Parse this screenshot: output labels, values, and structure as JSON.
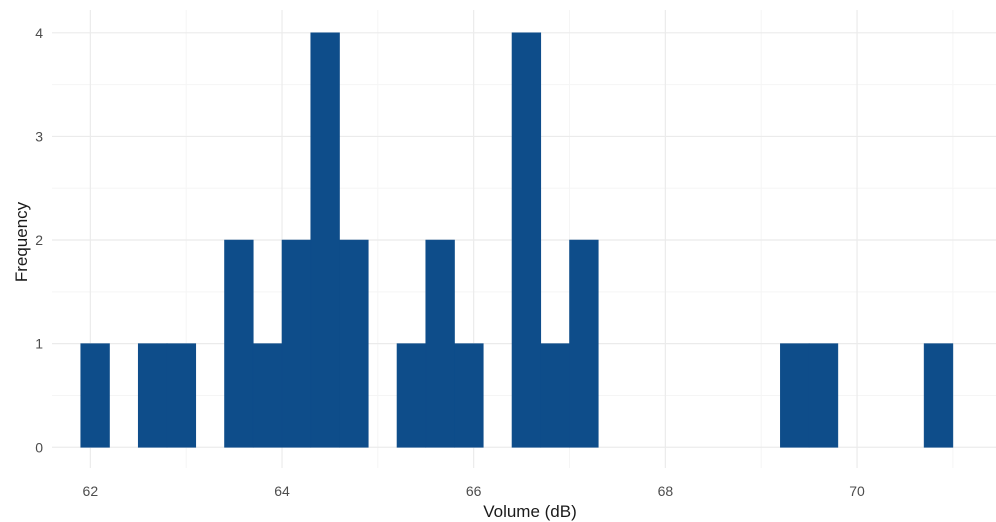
{
  "chart_data": {
    "type": "bar",
    "title": "",
    "xlabel": "Volume (dB)",
    "ylabel": "Frequency",
    "xlim": [
      61.6,
      71.45
    ],
    "ylim": [
      -0.2,
      4.22
    ],
    "bin_width": 0.3,
    "x_ticks": [
      62,
      64,
      66,
      68,
      70
    ],
    "x_tick_labels": [
      "62",
      "64",
      "66",
      "68",
      "70"
    ],
    "y_ticks": [
      0,
      1,
      2,
      3,
      4
    ],
    "y_tick_labels": [
      "0",
      "1",
      "2",
      "3",
      "4"
    ],
    "bins": [
      {
        "x0": 61.9,
        "x1": 62.2,
        "count": 1
      },
      {
        "x0": 62.5,
        "x1": 62.8,
        "count": 1
      },
      {
        "x0": 62.8,
        "x1": 63.1,
        "count": 1
      },
      {
        "x0": 63.4,
        "x1": 63.7,
        "count": 2
      },
      {
        "x0": 63.7,
        "x1": 64.0,
        "count": 1
      },
      {
        "x0": 64.0,
        "x1": 64.3,
        "count": 2
      },
      {
        "x0": 64.3,
        "x1": 64.6,
        "count": 4
      },
      {
        "x0": 64.6,
        "x1": 64.9,
        "count": 2
      },
      {
        "x0": 65.2,
        "x1": 65.5,
        "count": 1
      },
      {
        "x0": 65.5,
        "x1": 65.8,
        "count": 2
      },
      {
        "x0": 65.8,
        "x1": 66.1,
        "count": 1
      },
      {
        "x0": 66.4,
        "x1": 66.7,
        "count": 4
      },
      {
        "x0": 66.7,
        "x1": 67.0,
        "count": 1
      },
      {
        "x0": 67.0,
        "x1": 67.3,
        "count": 2
      },
      {
        "x0": 69.2,
        "x1": 69.5,
        "count": 1
      },
      {
        "x0": 69.5,
        "x1": 69.8,
        "count": 1
      },
      {
        "x0": 70.7,
        "x1": 71.0,
        "count": 1
      }
    ],
    "grid": true,
    "legend": "none",
    "colors": {
      "bar": "#0e4d8a",
      "grid_major": "#ebebeb",
      "grid_minor": "#f5f5f5",
      "background": "#ffffff"
    }
  }
}
